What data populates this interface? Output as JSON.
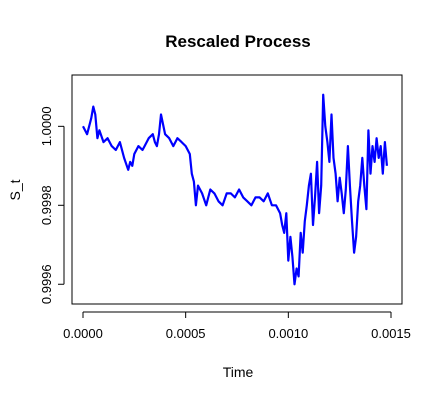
{
  "chart_data": {
    "type": "line",
    "title": "Rescaled Process",
    "xlabel": "Time",
    "ylabel": "S_t",
    "xlim": [
      -5.35e-05,
      0.0015535
    ],
    "ylim": [
      0.99955,
      1.00013
    ],
    "x_ticks": [
      0.0,
      0.0005,
      0.001,
      0.0015
    ],
    "x_tick_labels": [
      "0.0000",
      "0.0005",
      "0.0010",
      "0.0015"
    ],
    "y_ticks": [
      0.9996,
      0.9998,
      1.0
    ],
    "y_tick_labels": [
      "0.9996",
      "0.9998",
      "1.0000"
    ],
    "grid": false,
    "legend": "none",
    "series_color": "#0000ff",
    "series": [
      {
        "x": [
          0.0,
          2e-05,
          4e-05,
          5e-05,
          6e-05,
          7e-05,
          8e-05,
          0.0001,
          0.00012,
          0.00014,
          0.00016,
          0.00018,
          0.0002,
          0.00022,
          0.00023,
          0.00024,
          0.00025,
          0.00027,
          0.00029,
          0.0003,
          0.00032,
          0.00034,
          0.00035,
          0.00036,
          0.00037,
          0.00038,
          0.0004,
          0.00042,
          0.00044,
          0.00046,
          0.00048,
          0.0005,
          0.00052,
          0.00053,
          0.00054,
          0.00055,
          0.00056,
          0.00058,
          0.0006,
          0.00062,
          0.00064,
          0.00066,
          0.00068,
          0.0007,
          0.00072,
          0.00074,
          0.00076,
          0.00078,
          0.0008,
          0.00082,
          0.00084,
          0.00086,
          0.00088,
          0.0009,
          0.00092,
          0.00094,
          0.00096,
          0.00097,
          0.00098,
          0.00099,
          0.001,
          0.00101,
          0.00102,
          0.00103,
          0.00104,
          0.00105,
          0.00106,
          0.00107,
          0.00108,
          0.00109,
          0.0011,
          0.00111,
          0.00112,
          0.00113,
          0.00114,
          0.00115,
          0.00116,
          0.00117,
          0.00118,
          0.00119,
          0.0012,
          0.00121,
          0.00122,
          0.00123,
          0.00124,
          0.00125,
          0.00126,
          0.00127,
          0.00128,
          0.00129,
          0.0013,
          0.00131,
          0.00132,
          0.00133,
          0.00134,
          0.00135,
          0.00136,
          0.00137,
          0.00138,
          0.00139,
          0.0014,
          0.00141,
          0.00142,
          0.00143,
          0.00144,
          0.00145,
          0.00146,
          0.00147,
          0.00148
        ],
        "values": [
          1.0,
          0.99998,
          1.00002,
          1.00005,
          1.00003,
          0.99997,
          0.99999,
          0.99996,
          0.99997,
          0.99995,
          0.99994,
          0.99996,
          0.99992,
          0.99989,
          0.99991,
          0.9999,
          0.99993,
          0.99995,
          0.99994,
          0.99995,
          0.99997,
          0.99998,
          0.99996,
          0.99995,
          0.99998,
          1.00003,
          0.99998,
          0.99997,
          0.99995,
          0.99997,
          0.99996,
          0.99995,
          0.99993,
          0.99988,
          0.99986,
          0.9998,
          0.99985,
          0.99983,
          0.9998,
          0.99984,
          0.99983,
          0.99981,
          0.9998,
          0.99983,
          0.99983,
          0.99982,
          0.99984,
          0.99982,
          0.99981,
          0.9998,
          0.99982,
          0.99982,
          0.99981,
          0.99983,
          0.9998,
          0.9998,
          0.99978,
          0.99975,
          0.99973,
          0.99978,
          0.99966,
          0.99972,
          0.99967,
          0.9996,
          0.99964,
          0.99962,
          0.99973,
          0.99968,
          0.99976,
          0.9998,
          0.99985,
          0.99988,
          0.99975,
          0.99982,
          0.99991,
          0.99978,
          0.99985,
          1.00008,
          1.0,
          0.99996,
          0.99991,
          1.00003,
          0.99992,
          0.99988,
          0.99981,
          0.99987,
          0.99983,
          0.99978,
          0.99984,
          0.99995,
          0.99985,
          0.99976,
          0.99968,
          0.99972,
          0.99981,
          0.99985,
          0.99992,
          0.99985,
          0.99979,
          0.99999,
          0.99988,
          0.99995,
          0.99991,
          0.99997,
          0.99992,
          0.99995,
          0.99988,
          0.99996,
          0.9999
        ]
      }
    ]
  }
}
